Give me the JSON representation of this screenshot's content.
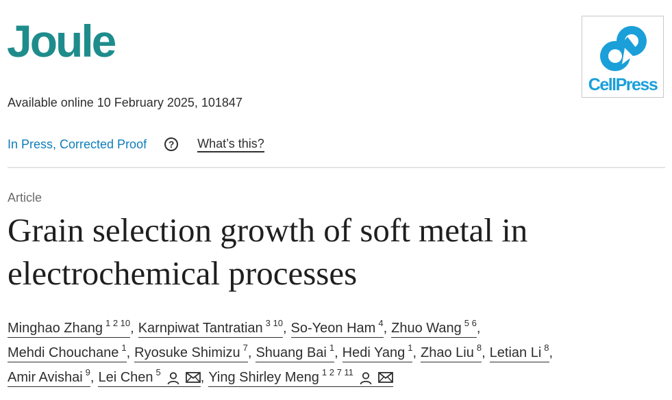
{
  "journal": {
    "title": "Joule"
  },
  "publisher": {
    "logo_text": "CellPress",
    "brand_color": "#1a9fd9"
  },
  "accent_color": "#1f8c8c",
  "availability": "Available online 10 February 2025, 101847",
  "status": {
    "label": "In Press, Corrected Proof",
    "help_icon": "?",
    "help_label": "What’s this?"
  },
  "article": {
    "type": "Article",
    "title": "Grain selection growth of soft metal in electrochemical processes"
  },
  "authors": [
    {
      "name": "Minghao Zhang",
      "affil": "1 2 10"
    },
    {
      "name": "Karnpiwat Tantratian",
      "affil": "3 10"
    },
    {
      "name": "So-Yeon Ham",
      "affil": "4"
    },
    {
      "name": "Zhuo Wang",
      "affil": "5 6"
    },
    {
      "name": "Mehdi Chouchane",
      "affil": "1"
    },
    {
      "name": "Ryosuke Shimizu",
      "affil": "7"
    },
    {
      "name": "Shuang Bai",
      "affil": "1"
    },
    {
      "name": "Hedi Yang",
      "affil": "1"
    },
    {
      "name": "Zhao Liu",
      "affil": "8"
    },
    {
      "name": "Letian Li",
      "affil": "8"
    },
    {
      "name": "Amir Avishai",
      "affil": "9"
    },
    {
      "name": "Lei Chen",
      "affil": "5",
      "icons": [
        "person-icon",
        "envelope-icon"
      ]
    },
    {
      "name": "Ying Shirley Meng",
      "affil": "1 2 7 11",
      "icons": [
        "person-icon",
        "envelope-icon"
      ]
    }
  ],
  "separators": {
    "comma": ","
  }
}
